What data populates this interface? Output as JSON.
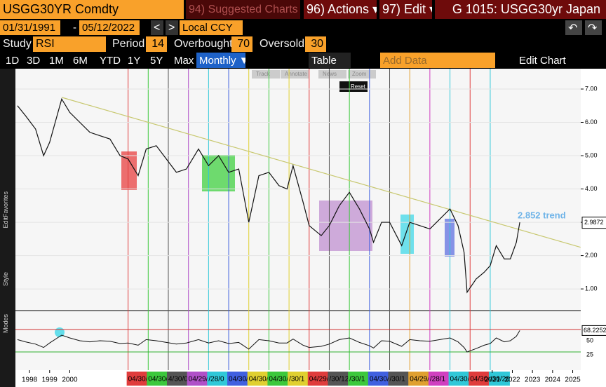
{
  "header": {
    "ticker": "USGG30YR Comdty",
    "suggested": "94) Suggested Charts",
    "actions": "96) Actions ▾",
    "edit": "97) Edit ▾",
    "title": "G 1015: USGG30yr Japan"
  },
  "range": {
    "start": "01/31/1991",
    "sep": "-",
    "end": "05/12/2022",
    "currency": "Local CCY"
  },
  "study": {
    "label": "Study",
    "name": "RSI",
    "period_label": "Period",
    "period": 14,
    "overbought_label": "Overbought",
    "overbought": 70,
    "oversold_label": "Oversold",
    "oversold": 30
  },
  "toolbar": {
    "periods": [
      "1D",
      "3D",
      "1M",
      "6M",
      "YTD",
      "1Y",
      "5Y",
      "Max"
    ],
    "frequency": "Monthly ▼",
    "table": "Table",
    "add_data": "Add Data",
    "edit_chart": "Edit Chart"
  },
  "chart_tools": [
    "Track",
    "Annotate",
    "News",
    "Zoom",
    "Reset"
  ],
  "side_labels": [
    "Favorites",
    "Edit",
    "Style",
    "Modes"
  ],
  "chart_data": {
    "type": "line",
    "x": [
      1997.4,
      1997.8,
      1998.3,
      1998.7,
      1999.0,
      1999.6,
      2000.0,
      2000.5,
      2001.0,
      2001.5,
      2002.0,
      2002.5,
      2002.9,
      2003.4,
      2003.8,
      2004.3,
      2004.8,
      2005.3,
      2005.8,
      2006.4,
      2006.9,
      2007.4,
      2007.9,
      2008.4,
      2008.9,
      2009.4,
      2009.9,
      2010.4,
      2010.8,
      2011.1,
      2011.6,
      2011.9,
      2012.5,
      2012.9,
      2013.4,
      2013.9,
      2014.4,
      2014.9,
      2015.1,
      2015.5,
      2015.9,
      2016.5,
      2016.9,
      2017.4,
      2017.9,
      2018.4,
      2018.9,
      2019.3,
      2019.6,
      2019.75,
      2020.2,
      2020.6,
      2020.9,
      2021.2,
      2021.6,
      2021.9,
      2022.2,
      2022.37
    ],
    "series": [
      {
        "color": "#111111",
        "values": [
          6.5,
          6.2,
          5.8,
          5.0,
          5.4,
          6.7,
          6.3,
          6.0,
          5.7,
          5.6,
          5.5,
          5.0,
          4.9,
          4.4,
          5.2,
          5.3,
          4.9,
          4.5,
          4.6,
          5.2,
          4.7,
          5.0,
          4.5,
          4.6,
          3.0,
          4.4,
          4.5,
          4.1,
          4.0,
          4.7,
          3.6,
          2.9,
          2.6,
          2.9,
          3.5,
          3.9,
          3.4,
          2.8,
          2.4,
          3.0,
          3.0,
          2.3,
          3.0,
          2.9,
          2.8,
          3.1,
          3.4,
          2.9,
          2.1,
          0.9,
          1.3,
          1.5,
          1.7,
          2.3,
          1.9,
          1.9,
          2.4,
          3.0
        ]
      }
    ],
    "last_value": 2.9872,
    "trend_label": "2.852 trend",
    "trend": {
      "x": [
        1999.6,
        2025.39
      ],
      "y": [
        6.75,
        2.25
      ],
      "color": "#c8c870"
    },
    "xlim": [
      1997.3,
      2025.4
    ],
    "ylim": [
      0.35,
      7.61
    ],
    "xticks": [
      1998,
      1999,
      2000,
      2021,
      2022,
      2023,
      2024,
      2025
    ],
    "yticks": [
      {
        "value": 1,
        "label": "1.00"
      },
      {
        "value": 2,
        "label": "2.00"
      },
      {
        "value": 3,
        "label": "3.00"
      },
      {
        "value": 4,
        "label": "4.00"
      },
      {
        "value": 5,
        "label": "5.00"
      },
      {
        "value": 6,
        "label": "6.00"
      },
      {
        "value": 7,
        "label": "7.00"
      }
    ],
    "events": [
      {
        "x": 2002.9,
        "color": "#e03c3c",
        "label": "04/30/"
      },
      {
        "x": 2003.9,
        "color": "#3cc83c",
        "label": "04/30/03"
      },
      {
        "x": 2004.9,
        "color": "#555555",
        "label": "4/30/0"
      },
      {
        "x": 2005.9,
        "color": "#b050c8",
        "label": "04/29/05"
      },
      {
        "x": 2006.9,
        "color": "#30c8d8",
        "label": "/28/0"
      },
      {
        "x": 2007.9,
        "color": "#4060e0",
        "label": "04/30/0"
      },
      {
        "x": 2008.9,
        "color": "#e0d030",
        "label": "04/30/"
      },
      {
        "x": 2009.9,
        "color": "#3cc83c",
        "label": "04/30/09"
      },
      {
        "x": 2010.9,
        "color": "#e0d030",
        "label": "/30/1"
      },
      {
        "x": 2011.9,
        "color": "#e03c3c",
        "label": "04/29/11"
      },
      {
        "x": 2012.9,
        "color": "#555555",
        "label": "/30/12"
      },
      {
        "x": 2013.9,
        "color": "#3cc83c",
        "label": "/30/1"
      },
      {
        "x": 2014.9,
        "color": "#4060e0",
        "label": "04/30/14"
      },
      {
        "x": 2015.9,
        "color": "#555555",
        "label": "/30/1"
      },
      {
        "x": 2016.9,
        "color": "#e0a030",
        "label": "04/29/16"
      },
      {
        "x": 2017.9,
        "color": "#d040c0",
        "label": "/28/1"
      },
      {
        "x": 2018.9,
        "color": "#30c8d8",
        "label": "04/30/1"
      },
      {
        "x": 2019.9,
        "color": "#e03c3c",
        "label": "04/30/19"
      },
      {
        "x": 2020.9,
        "color": "#30c8d8",
        "label": "/30/20"
      }
    ],
    "rsi": {
      "color": "#111111",
      "values": [
        52,
        48,
        44,
        38,
        46,
        60,
        55,
        50,
        48,
        50,
        49,
        45,
        46,
        42,
        52,
        50,
        47,
        44,
        46,
        52,
        46,
        50,
        45,
        47,
        35,
        52,
        50,
        46,
        46,
        53,
        42,
        38,
        40,
        44,
        52,
        55,
        47,
        41,
        37,
        50,
        49,
        40,
        52,
        50,
        49,
        52,
        55,
        48,
        38,
        30,
        36,
        42,
        45,
        55,
        48,
        50,
        58,
        68.2252
      ],
      "ylim": [
        0,
        100
      ],
      "yticks": [
        25,
        50
      ],
      "last": 68.2252
    }
  }
}
